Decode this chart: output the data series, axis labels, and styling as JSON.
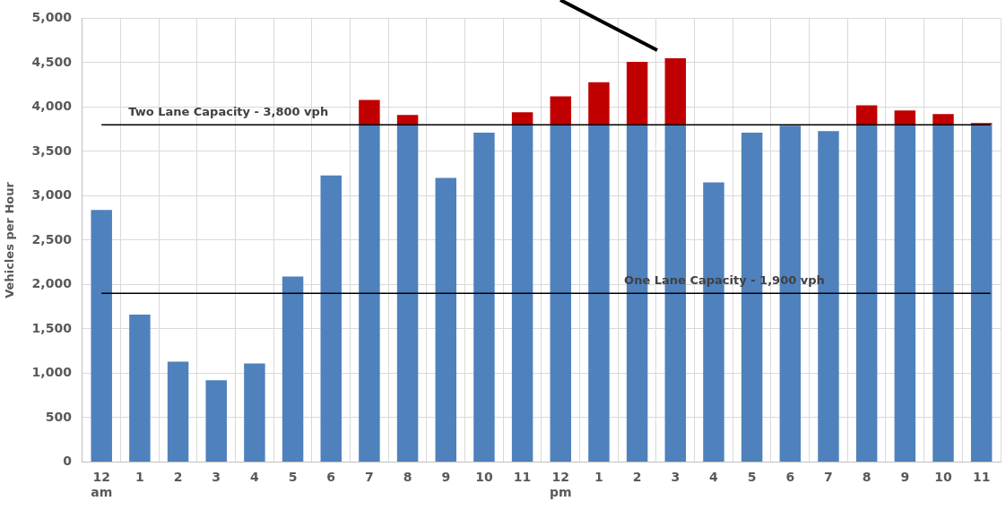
{
  "chart_data": {
    "type": "bar",
    "ylabel": "Vehicles per Hour",
    "categories": [
      "12\nam",
      "1",
      "2",
      "3",
      "4",
      "5",
      "6",
      "7",
      "8",
      "9",
      "10",
      "11",
      "12\npm",
      "1",
      "2",
      "3",
      "4",
      "5",
      "6",
      "7",
      "8",
      "9",
      "10",
      "11"
    ],
    "stacked": true,
    "series": [
      {
        "color": "#4f81bd",
        "values": [
          2840,
          1660,
          1130,
          920,
          1110,
          2090,
          3230,
          3800,
          3800,
          3200,
          3710,
          3800,
          3800,
          3800,
          3800,
          3800,
          3150,
          3710,
          3790,
          3730,
          3800,
          3800,
          3800,
          3800
        ]
      },
      {
        "color": "#c00000",
        "values": [
          null,
          null,
          null,
          null,
          null,
          null,
          null,
          280,
          110,
          null,
          null,
          140,
          320,
          480,
          710,
          750,
          null,
          null,
          null,
          null,
          220,
          160,
          120,
          20
        ]
      }
    ],
    "ylim": [
      0,
      5000
    ],
    "yticks": [
      {
        "value": 0,
        "label": "0"
      },
      {
        "value": 500,
        "label": "500"
      },
      {
        "value": 1000,
        "label": "1,000"
      },
      {
        "value": 1500,
        "label": "1,500"
      },
      {
        "value": 2000,
        "label": "2,000"
      },
      {
        "value": 2500,
        "label": "2,500"
      },
      {
        "value": 3000,
        "label": "3,000"
      },
      {
        "value": 3500,
        "label": "3,500"
      },
      {
        "value": 4000,
        "label": "4,000"
      },
      {
        "value": 4500,
        "label": "4,500"
      },
      {
        "value": 5000,
        "label": "5,000"
      }
    ],
    "grid": true,
    "legend": false,
    "ref_lines": [
      {
        "axis": "y",
        "value": 3800,
        "label": "Two Lane Capacity - 3,800 vph",
        "color": "#000000"
      },
      {
        "axis": "y",
        "value": 1900,
        "label": "One Lane Capacity - 1,900 vph",
        "color": "#000000"
      }
    ]
  }
}
